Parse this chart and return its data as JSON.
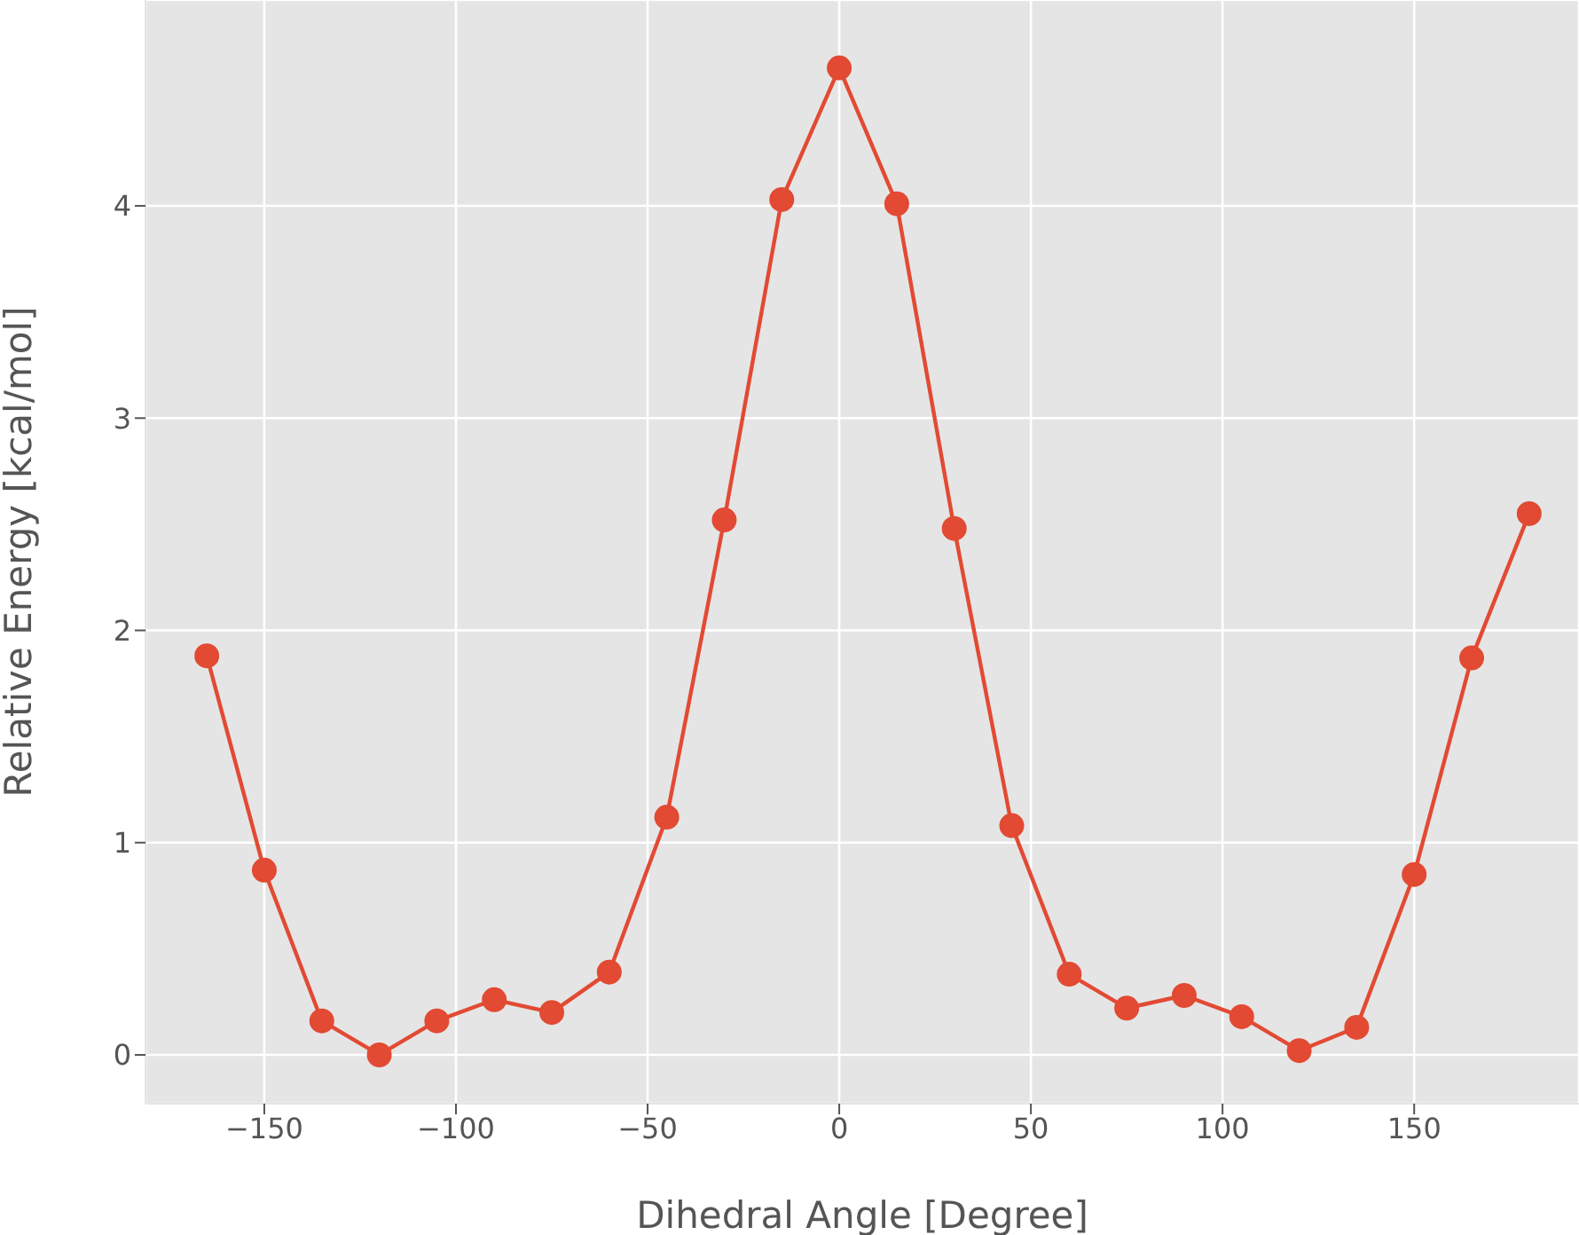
{
  "chart_data": {
    "type": "line",
    "xlabel": "Dihedral Angle [Degree]",
    "ylabel": "Relative Energy [kcal/mol]",
    "x": [
      -165,
      -150,
      -135,
      -120,
      -105,
      -90,
      -75,
      -60,
      -45,
      -30,
      -15,
      0,
      15,
      30,
      45,
      60,
      75,
      90,
      105,
      120,
      135,
      150,
      165,
      180
    ],
    "series": [
      {
        "color": "#e24a33",
        "values": [
          1.88,
          0.87,
          0.16,
          0.0,
          0.16,
          0.26,
          0.2,
          0.39,
          1.12,
          2.52,
          4.03,
          4.65,
          4.01,
          2.48,
          1.08,
          0.38,
          0.22,
          0.28,
          0.18,
          0.02,
          0.13,
          0.85,
          1.87,
          2.55
        ]
      }
    ],
    "xlim": [
      -181,
      193
    ],
    "ylim": [
      -0.23,
      4.97
    ],
    "xticks": [
      -150,
      -100,
      -50,
      0,
      50,
      100,
      150
    ],
    "yticks": [
      0,
      1,
      2,
      3,
      4
    ],
    "grid": true,
    "marker": "circle",
    "line_style": "solid"
  }
}
